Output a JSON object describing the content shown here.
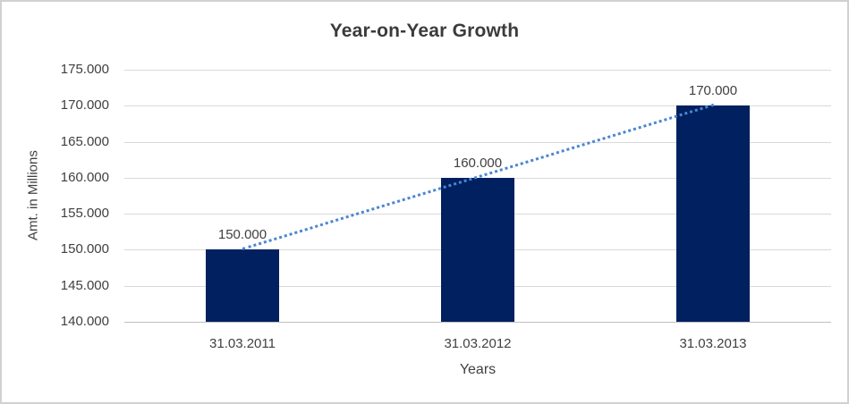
{
  "chart_data": {
    "type": "bar",
    "title": "Year-on-Year Growth",
    "xlabel": "Years",
    "ylabel": "Amt. in Millions",
    "categories": [
      "31.03.2011",
      "31.03.2012",
      "31.03.2013"
    ],
    "values": [
      150000,
      160000,
      170000
    ],
    "data_labels": [
      "150.000",
      "160.000",
      "170.000"
    ],
    "ylim": [
      140000,
      175000
    ],
    "ytick_step": 5000,
    "ytick_labels": [
      "175.000",
      "170.000",
      "165.000",
      "160.000",
      "155.000",
      "150.000",
      "145.000",
      "140.000"
    ],
    "grid": "horizontal",
    "legend": "none",
    "trendline": {
      "type": "linear",
      "style": "dotted"
    },
    "colors": {
      "bar": "#002060",
      "trendline": "#4a86d2",
      "gridline": "#d9d9d9",
      "axis_line": "#bfbfbf",
      "text": "#404040",
      "title": "#3b3b3b",
      "background": "#ffffff",
      "frame_border": "#d1d1d1"
    }
  }
}
